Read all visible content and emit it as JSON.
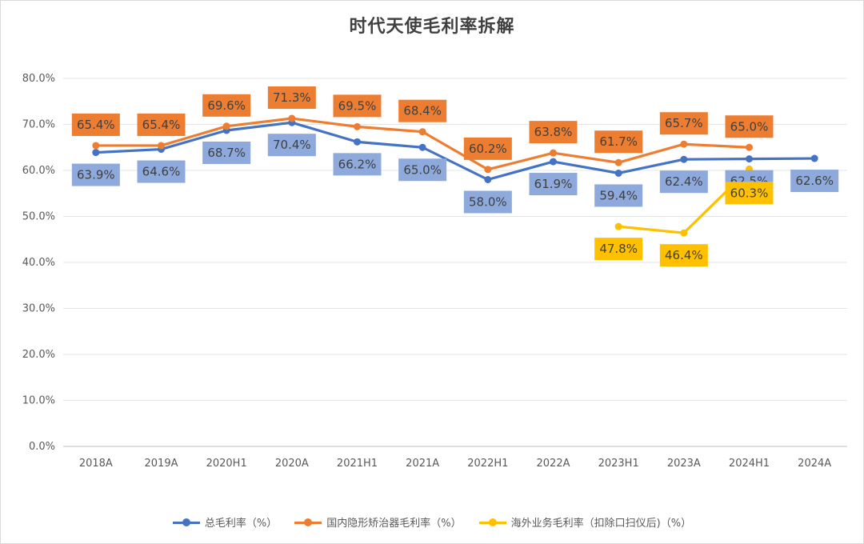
{
  "chart_data": {
    "type": "line",
    "title": "时代天使毛利率拆解",
    "categories": [
      "2018A",
      "2019A",
      "2020H1",
      "2020A",
      "2021H1",
      "2021A",
      "2022H1",
      "2022A",
      "2023H1",
      "2023A",
      "2024H1",
      "2024A"
    ],
    "ylim": [
      0,
      80
    ],
    "yticks": [
      "0.0%",
      "10.0%",
      "20.0%",
      "30.0%",
      "40.0%",
      "50.0%",
      "60.0%",
      "70.0%",
      "80.0%"
    ],
    "grid": true,
    "legend_position": "bottom",
    "series": [
      {
        "name": "总毛利率（%）",
        "color": "#4472C4",
        "label_bg": "#8EA9DB",
        "label_pos": "below",
        "values": [
          63.9,
          64.6,
          68.7,
          70.4,
          66.2,
          65.0,
          58.0,
          61.9,
          59.4,
          62.4,
          62.5,
          62.6
        ],
        "labels": [
          "63.9%",
          "64.6%",
          "68.7%",
          "70.4%",
          "66.2%",
          "65.0%",
          "58.0%",
          "61.9%",
          "59.4%",
          "62.4%",
          "62.5%",
          "62.6%"
        ]
      },
      {
        "name": "国内隐形矫治器毛利率（%）",
        "color": "#ED7D31",
        "label_bg": "#ED7D31",
        "label_pos": "above",
        "values": [
          65.4,
          65.4,
          69.6,
          71.3,
          69.5,
          68.4,
          60.2,
          63.8,
          61.7,
          65.7,
          65.0,
          null
        ],
        "labels": [
          "65.4%",
          "65.4%",
          "69.6%",
          "71.3%",
          "69.5%",
          "68.4%",
          "60.2%",
          "63.8%",
          "61.7%",
          "65.7%",
          "65.0%",
          null
        ]
      },
      {
        "name": "海外业务毛利率（扣除口扫仪后)（%）",
        "color": "#FFC000",
        "label_bg": "#FFC000",
        "label_pos": "below",
        "values": [
          null,
          null,
          null,
          null,
          null,
          null,
          null,
          null,
          47.8,
          46.4,
          60.3,
          null
        ],
        "labels": [
          null,
          null,
          null,
          null,
          null,
          null,
          null,
          null,
          "47.8%",
          "46.4%",
          "60.3%",
          null
        ]
      }
    ]
  }
}
